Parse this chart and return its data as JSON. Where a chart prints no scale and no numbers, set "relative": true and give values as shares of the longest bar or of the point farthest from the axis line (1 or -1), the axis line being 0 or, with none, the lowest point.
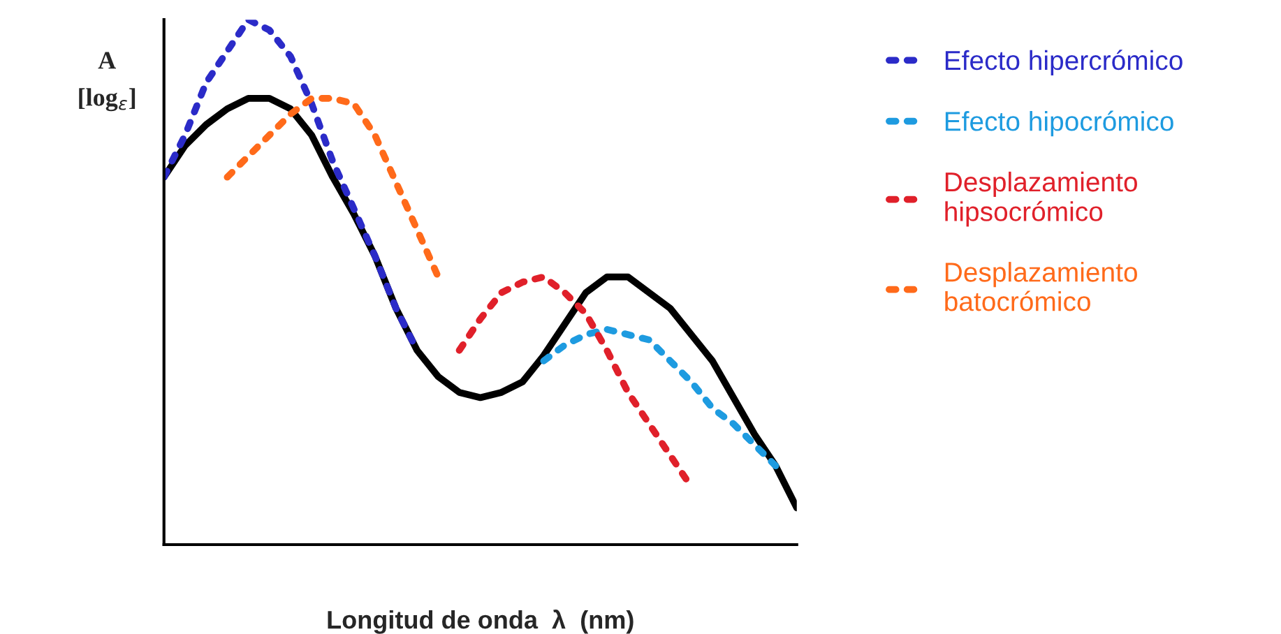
{
  "chart_data": {
    "type": "line",
    "relative": true,
    "xlabel": "Longitud de onda  λ  (nm)",
    "ylabel": "A\n[log$_{ε}$]",
    "legend": "right",
    "grid": false,
    "categories": [
      null,
      null,
      null,
      null,
      null,
      null,
      null,
      null,
      null,
      null,
      null,
      null,
      null,
      null,
      null,
      null,
      null,
      null,
      null,
      null,
      null,
      null,
      null,
      null,
      null,
      null,
      null,
      null,
      null,
      null,
      null
    ],
    "series": [
      {
        "color": "#000000",
        "line_style": "solid",
        "values": [
          0.7,
          0.76,
          0.8,
          0.83,
          0.85,
          0.85,
          0.83,
          0.78,
          0.7,
          0.63,
          0.55,
          0.45,
          0.37,
          0.32,
          0.29,
          0.28,
          0.29,
          0.31,
          0.36,
          0.42,
          0.48,
          0.51,
          0.51,
          0.48,
          0.45,
          0.4,
          0.35,
          0.28,
          0.21,
          0.15,
          0.07
        ]
      },
      {
        "name": "Efecto hipercrómico",
        "color": "#2b2bc8",
        "line_style": "dotted",
        "values": [
          0.7,
          0.78,
          0.88,
          0.94,
          1.0,
          0.98,
          0.93,
          0.84,
          0.73,
          0.64,
          0.55,
          0.45,
          0.37,
          null,
          null,
          null,
          null,
          null,
          null,
          null,
          null,
          null,
          null,
          null,
          null,
          null,
          null,
          null,
          null,
          null,
          null
        ]
      },
      {
        "name": "Efecto hipocrómico",
        "color": "#1e9be0",
        "line_style": "dotted",
        "values": [
          null,
          null,
          null,
          null,
          null,
          null,
          null,
          null,
          null,
          null,
          null,
          null,
          null,
          null,
          null,
          null,
          null,
          null,
          0.35,
          0.38,
          0.4,
          0.41,
          0.4,
          0.39,
          0.35,
          0.31,
          0.26,
          0.23,
          0.19,
          0.15,
          null
        ]
      },
      {
        "name": "Desplazamiento\nhipsocrómico",
        "color": "#e0202a",
        "line_style": "dotted",
        "values": [
          null,
          null,
          null,
          null,
          null,
          null,
          null,
          null,
          null,
          null,
          null,
          null,
          null,
          null,
          0.37,
          0.43,
          0.48,
          0.5,
          0.51,
          0.48,
          0.44,
          0.37,
          0.29,
          0.23,
          0.17,
          0.11,
          null,
          null,
          null,
          null,
          null
        ]
      },
      {
        "name": "Desplazamiento\nbatocrómico",
        "color": "#ff6a1a",
        "line_style": "dotted",
        "values": [
          null,
          null,
          null,
          0.7,
          0.74,
          0.78,
          0.82,
          0.85,
          0.85,
          0.84,
          0.78,
          0.69,
          0.6,
          0.51,
          null,
          null,
          null,
          null,
          null,
          null,
          null,
          null,
          null,
          null,
          null,
          null,
          null,
          null,
          null,
          null,
          null
        ]
      }
    ]
  }
}
